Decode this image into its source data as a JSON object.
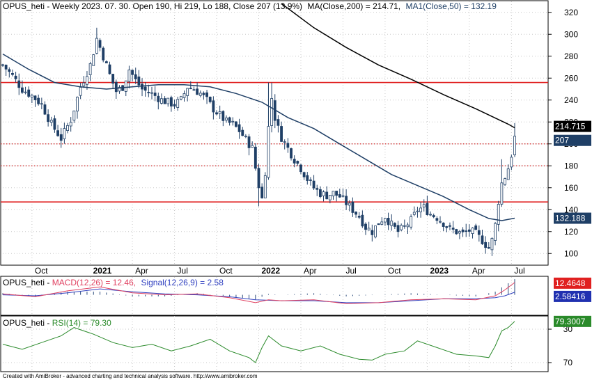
{
  "price_panel": {
    "symbol": "OPUS_heti",
    "header_main": "OPUS_heti - Weekly 2023. 07. 30. Open 190, Hi 219, Lo 188, Close 207 (13.9%)",
    "ma_label": "MA(Close,200) = 214.71,",
    "ma1_label": "MA1(Close,50) = 132.19",
    "badge_ma200": "214.715",
    "badge_close": "207",
    "badge_ma50": "132.188"
  },
  "macd_panel": {
    "prefix": "OPUS_heti - ",
    "macd_label": "MACD(12,26) = 12.46,",
    "signal_label": "Signal(12,26,9) = 2.58",
    "badge_macd": "12.4648",
    "badge_signal": "2.58416"
  },
  "rsi_panel": {
    "prefix": "OPUS_heti - ",
    "rsi_label": "RSI(14) = 79.30",
    "badge_rsi": "79.3007",
    "levels": [
      "70",
      "30"
    ]
  },
  "x_axis": {
    "labels": [
      {
        "text": "Oct",
        "bold": false
      },
      {
        "text": "2021",
        "bold": true
      },
      {
        "text": "Apr",
        "bold": false
      },
      {
        "text": "Jul",
        "bold": false
      },
      {
        "text": "Oct",
        "bold": false
      },
      {
        "text": "2022",
        "bold": true
      },
      {
        "text": "Apr",
        "bold": false
      },
      {
        "text": "Jul",
        "bold": false
      },
      {
        "text": "Oct",
        "bold": false
      },
      {
        "text": "2023",
        "bold": true
      },
      {
        "text": "Apr",
        "bold": false
      },
      {
        "text": "Jul",
        "bold": false
      }
    ]
  },
  "footer": "Created with AmiBroker - advanced charting and technical analysis software. http://www.amibroker.com",
  "colors": {
    "candle": "#1f3f66",
    "ma200": "#000000",
    "ma50": "#1f3f66",
    "support_resistance": "#e02020",
    "dotted_levels": "#d02020",
    "macd": "#e04060",
    "signal": "#3040c0",
    "rsi": "#2a8a2a",
    "grid": "#c8c8c8"
  },
  "chart_data": [
    {
      "type": "candlestick",
      "title": "OPUS_heti - Weekly",
      "ylim": [
        90,
        330
      ],
      "y_ticks": [
        100,
        120,
        140,
        160,
        180,
        200,
        220,
        240,
        260,
        280,
        300,
        320
      ],
      "last_bar": {
        "date": "2023-07-30",
        "open": 190,
        "high": 219,
        "low": 188,
        "close": 207,
        "change_pct": 13.9
      },
      "horizontal_lines": [
        {
          "value": 256,
          "style": "solid"
        },
        {
          "value": 147,
          "style": "solid"
        },
        {
          "value": 200,
          "style": "dotted"
        },
        {
          "value": 180,
          "style": "dotted"
        }
      ],
      "close_path": [
        [
          0,
          272
        ],
        [
          3,
          262
        ],
        [
          6,
          250
        ],
        [
          9,
          244
        ],
        [
          12,
          236
        ],
        [
          15,
          218
        ],
        [
          18,
          205
        ],
        [
          21,
          222
        ],
        [
          24,
          252
        ],
        [
          27,
          272
        ],
        [
          29,
          296
        ],
        [
          31,
          280
        ],
        [
          33,
          263
        ],
        [
          35,
          248
        ],
        [
          37,
          252
        ],
        [
          39,
          268
        ],
        [
          41,
          258
        ],
        [
          43,
          250
        ],
        [
          45,
          247
        ],
        [
          47,
          244
        ],
        [
          49,
          240
        ],
        [
          51,
          238
        ],
        [
          53,
          236
        ],
        [
          55,
          240
        ],
        [
          57,
          252
        ],
        [
          59,
          250
        ],
        [
          61,
          246
        ],
        [
          63,
          240
        ],
        [
          65,
          232
        ],
        [
          67,
          226
        ],
        [
          69,
          220
        ],
        [
          71,
          218
        ],
        [
          73,
          212
        ],
        [
          75,
          204
        ],
        [
          77,
          196
        ],
        [
          78,
          178
        ],
        [
          79,
          162
        ],
        [
          80,
          150
        ],
        [
          81,
          175
        ],
        [
          82,
          215
        ],
        [
          83,
          242
        ],
        [
          84,
          224
        ],
        [
          85,
          214
        ],
        [
          86,
          206
        ],
        [
          88,
          196
        ],
        [
          90,
          186
        ],
        [
          92,
          178
        ],
        [
          94,
          168
        ],
        [
          96,
          160
        ],
        [
          98,
          155
        ],
        [
          100,
          153
        ],
        [
          102,
          155
        ],
        [
          104,
          152
        ],
        [
          106,
          146
        ],
        [
          108,
          140
        ],
        [
          110,
          134
        ],
        [
          112,
          124
        ],
        [
          114,
          120
        ],
        [
          116,
          128
        ],
        [
          118,
          134
        ],
        [
          120,
          126
        ],
        [
          122,
          120
        ],
        [
          124,
          124
        ],
        [
          126,
          130
        ],
        [
          128,
          140
        ],
        [
          130,
          142
        ],
        [
          132,
          136
        ],
        [
          134,
          133
        ],
        [
          136,
          128
        ],
        [
          138,
          122
        ],
        [
          140,
          120
        ],
        [
          142,
          118
        ],
        [
          144,
          121
        ],
        [
          146,
          118
        ],
        [
          148,
          112
        ],
        [
          150,
          105
        ],
        [
          151,
          112
        ],
        [
          152,
          126
        ],
        [
          153,
          148
        ],
        [
          154,
          164
        ],
        [
          155,
          170
        ],
        [
          156,
          178
        ],
        [
          157,
          190
        ],
        [
          158,
          207
        ]
      ],
      "series": [
        {
          "name": "MA(Close,200)",
          "last": 214.71,
          "path": [
            [
              86,
              328
            ],
            [
              96,
              306
            ],
            [
              106,
              288
            ],
            [
              116,
              272
            ],
            [
              126,
              259
            ],
            [
              136,
              245
            ],
            [
              146,
              232
            ],
            [
              156,
              218
            ],
            [
              158,
              214.7
            ]
          ]
        },
        {
          "name": "MA1(Close,50)",
          "last": 132.19,
          "path": [
            [
              0,
              282
            ],
            [
              8,
              268
            ],
            [
              16,
              256
            ],
            [
              24,
              252
            ],
            [
              32,
              250
            ],
            [
              40,
              252
            ],
            [
              48,
              254
            ],
            [
              56,
              254
            ],
            [
              64,
              252
            ],
            [
              72,
              246
            ],
            [
              80,
              238
            ],
            [
              88,
              224
            ],
            [
              96,
              214
            ],
            [
              104,
              200
            ],
            [
              112,
              186
            ],
            [
              120,
              172
            ],
            [
              128,
              162
            ],
            [
              136,
              152
            ],
            [
              144,
              140
            ],
            [
              150,
              132
            ],
            [
              154,
              130
            ],
            [
              158,
              132.2
            ]
          ]
        }
      ]
    },
    {
      "type": "line",
      "title": "MACD(12,26), Signal(12,26,9)",
      "ylim": [
        -20,
        18
      ],
      "series": [
        {
          "name": "MACD(12,26)",
          "last": 12.46,
          "path": [
            [
              0,
              1
            ],
            [
              10,
              -2
            ],
            [
              20,
              4
            ],
            [
              30,
              8
            ],
            [
              40,
              2
            ],
            [
              50,
              0
            ],
            [
              60,
              1
            ],
            [
              70,
              -3
            ],
            [
              78,
              -8
            ],
            [
              82,
              -5
            ],
            [
              86,
              -6
            ],
            [
              96,
              -5
            ],
            [
              106,
              -9
            ],
            [
              116,
              -8
            ],
            [
              126,
              -5
            ],
            [
              136,
              -4
            ],
            [
              146,
              -5
            ],
            [
              152,
              -1
            ],
            [
              155,
              5
            ],
            [
              158,
              12.46
            ]
          ]
        },
        {
          "name": "Signal(12,26,9)",
          "last": 2.58,
          "path": [
            [
              0,
              0
            ],
            [
              10,
              -1
            ],
            [
              20,
              2
            ],
            [
              30,
              6
            ],
            [
              40,
              3
            ],
            [
              50,
              1
            ],
            [
              60,
              0
            ],
            [
              70,
              -2
            ],
            [
              78,
              -5
            ],
            [
              86,
              -6
            ],
            [
              96,
              -6
            ],
            [
              106,
              -8
            ],
            [
              116,
              -8
            ],
            [
              126,
              -6
            ],
            [
              136,
              -4
            ],
            [
              146,
              -4
            ],
            [
              152,
              -3
            ],
            [
              155,
              -1
            ],
            [
              158,
              2.58
            ]
          ]
        }
      ]
    },
    {
      "type": "line",
      "title": "RSI(14)",
      "ylim": [
        20,
        85
      ],
      "y_ticks": [
        30,
        70
      ],
      "series": [
        {
          "name": "RSI(14)",
          "last": 79.3,
          "path": [
            [
              0,
              52
            ],
            [
              6,
              46
            ],
            [
              12,
              54
            ],
            [
              18,
              62
            ],
            [
              22,
              72
            ],
            [
              28,
              64
            ],
            [
              34,
              54
            ],
            [
              40,
              48
            ],
            [
              46,
              52
            ],
            [
              52,
              44
            ],
            [
              58,
              50
            ],
            [
              64,
              58
            ],
            [
              70,
              44
            ],
            [
              76,
              36
            ],
            [
              78,
              30
            ],
            [
              80,
              48
            ],
            [
              82,
              62
            ],
            [
              86,
              50
            ],
            [
              92,
              44
            ],
            [
              98,
              50
            ],
            [
              104,
              40
            ],
            [
              110,
              34
            ],
            [
              114,
              33
            ],
            [
              118,
              40
            ],
            [
              124,
              44
            ],
            [
              128,
              56
            ],
            [
              134,
              48
            ],
            [
              140,
              40
            ],
            [
              146,
              38
            ],
            [
              150,
              36
            ],
            [
              152,
              50
            ],
            [
              154,
              68
            ],
            [
              156,
              72
            ],
            [
              158,
              79.3
            ]
          ]
        }
      ]
    }
  ]
}
